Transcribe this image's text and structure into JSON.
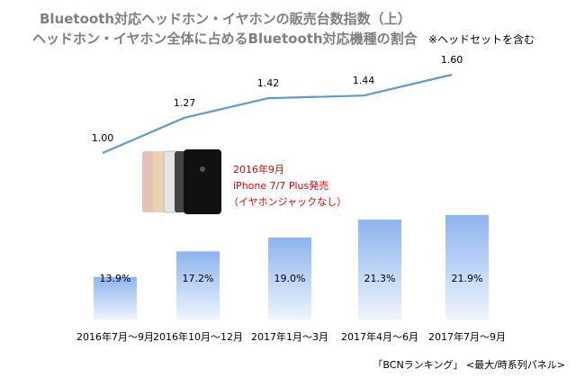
{
  "chart_data": {
    "type": "bar+line",
    "title": "Bluetooth対応ヘッドホン・イヤホンの販売台数指数（上）",
    "subtitle": "ヘッドホン・イヤホン全体に占めるBluetooth対応機種の割合",
    "note": "※ヘッドセットを含む",
    "categories": [
      "2016年7月～9月",
      "2016年10月～12月",
      "2017年1月～3月",
      "2017年4月～6月",
      "2017年7月～9月"
    ],
    "line_series": {
      "name": "販売台数指数",
      "values": [
        1.0,
        1.27,
        1.42,
        1.44,
        1.6
      ],
      "labels": [
        "1.00",
        "1.27",
        "1.42",
        "1.44",
        "1.60"
      ],
      "color": "#5b9bd5"
    },
    "bar_series": {
      "name": "Bluetooth対応機種の割合",
      "values": [
        13.9,
        17.2,
        19.0,
        21.3,
        21.9
      ],
      "labels": [
        "13.9%",
        "17.2%",
        "19.0%",
        "21.3%",
        "21.9%"
      ],
      "color": "#8db4ef"
    },
    "annotation": [
      "2016年9月",
      "iPhone 7/7 Plus発売",
      "（イヤホンジャックなし）"
    ],
    "source": "「BCNランキング」 <最大/時系列パネル>"
  }
}
